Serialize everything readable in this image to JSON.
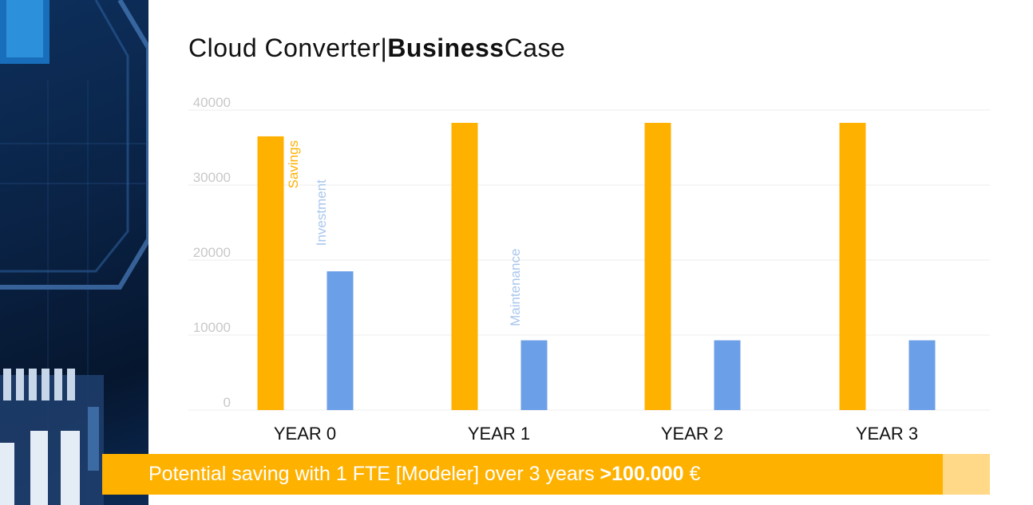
{
  "title": {
    "prefix": "Cloud Converter",
    "separator": "|",
    "bold": "Business",
    "suffix": "Case"
  },
  "chart_data": {
    "type": "bar",
    "title": "",
    "xlabel": "",
    "ylabel": "",
    "categories": [
      "YEAR 0",
      "YEAR 1",
      "YEAR 2",
      "YEAR 3"
    ],
    "ylim": [
      0,
      40000
    ],
    "yticks": [
      0,
      10000,
      20000,
      30000,
      40000
    ],
    "grid": true,
    "series": [
      {
        "color": "#ffb100",
        "values": [
          36500,
          38300,
          38300,
          38300
        ]
      },
      {
        "color": "#6b9fe8",
        "values": [
          18500,
          9300,
          9300,
          9300
        ]
      }
    ],
    "annotations": [
      {
        "text": "Savings",
        "series": 0,
        "category": 0,
        "color": "#ffb100"
      },
      {
        "text": "Investment",
        "series": 1,
        "category": 0,
        "color": "#a9c6ee"
      },
      {
        "text": "Maintenance",
        "series": 1,
        "category": 1,
        "color": "#a9c6ee"
      }
    ]
  },
  "banner": {
    "text": "Potential saving with 1 FTE [Modeler] over 3 years ",
    "highlight": ">100.000",
    "currency": " €"
  },
  "colors": {
    "accent": "#ffb100",
    "secondary": "#6b9fe8",
    "banner_tail": "#ffd987"
  }
}
